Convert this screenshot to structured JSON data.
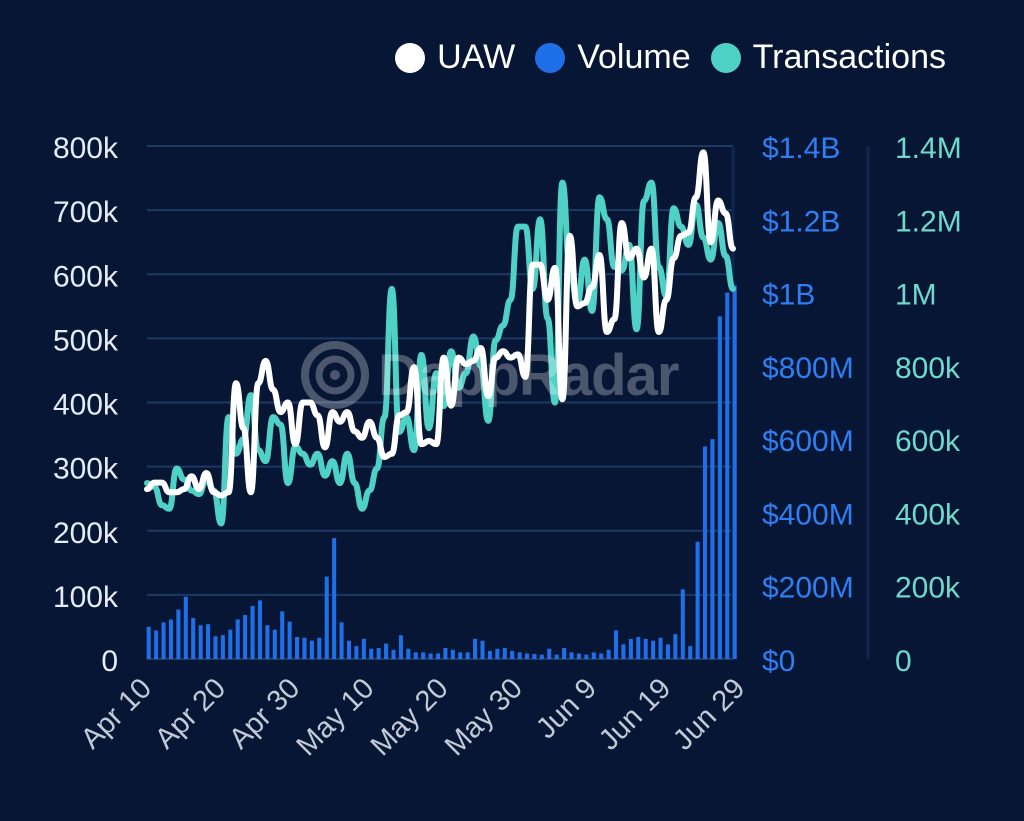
{
  "legend": [
    {
      "label": "UAW",
      "color": "#ffffff"
    },
    {
      "label": "Volume",
      "color": "#1f6fe8"
    },
    {
      "label": "Transactions",
      "color": "#4fd1c5"
    }
  ],
  "watermark": "DappRadar",
  "chart_data": {
    "type": "line",
    "xlabel": "",
    "x_tick_labels": [
      "Apr 10",
      "Apr 20",
      "Apr 30",
      "May 10",
      "May 20",
      "May 30",
      "Jun 9",
      "Jun 19",
      "Jun 29"
    ],
    "y_left": {
      "label": "",
      "ticks": [
        "0",
        "100k",
        "200k",
        "300k",
        "400k",
        "500k",
        "600k",
        "700k",
        "800k"
      ],
      "ylim": [
        0,
        800000
      ]
    },
    "y_volume": {
      "label": "",
      "ticks": [
        "$0",
        "$200M",
        "$400M",
        "$600M",
        "$800M",
        "$1B",
        "$1.2B",
        "$1.4B"
      ],
      "ylim": [
        0,
        1400000000
      ]
    },
    "y_transactions": {
      "label": "",
      "ticks": [
        "0",
        "200k",
        "400k",
        "600k",
        "800k",
        "1M",
        "1.2M",
        "1.4M"
      ],
      "ylim": [
        0,
        1400000
      ]
    },
    "grid": true,
    "legend_position": "top-right",
    "series": [
      {
        "name": "UAW",
        "axis": "left",
        "color": "#ffffff",
        "values": [
          265000,
          275000,
          275000,
          260000,
          260000,
          265000,
          285000,
          265000,
          290000,
          260000,
          255000,
          260000,
          430000,
          360000,
          260000,
          430000,
          465000,
          420000,
          385000,
          400000,
          335000,
          400000,
          400000,
          380000,
          330000,
          385000,
          370000,
          385000,
          355000,
          345000,
          370000,
          345000,
          315000,
          320000,
          380000,
          385000,
          455000,
          335000,
          340000,
          335000,
          470000,
          395000,
          470000,
          460000,
          465000,
          485000,
          410000,
          470000,
          480000,
          470000,
          475000,
          440000,
          615000,
          615000,
          560000,
          610000,
          405000,
          660000,
          550000,
          555000,
          580000,
          630000,
          510000,
          530000,
          680000,
          625000,
          640000,
          595000,
          640000,
          510000,
          560000,
          625000,
          660000,
          665000,
          720000,
          790000,
          650000,
          715000,
          695000,
          640000
        ]
      },
      {
        "name": "Transactions",
        "axis": "right",
        "color": "#4fd1c5",
        "values": [
          480000,
          470000,
          420000,
          410000,
          520000,
          490000,
          460000,
          450000,
          490000,
          460000,
          370000,
          660000,
          560000,
          600000,
          720000,
          570000,
          540000,
          660000,
          640000,
          480000,
          580000,
          560000,
          530000,
          560000,
          500000,
          540000,
          480000,
          560000,
          480000,
          410000,
          460000,
          520000,
          660000,
          1010000,
          620000,
          660000,
          570000,
          830000,
          630000,
          780000,
          690000,
          840000,
          740000,
          780000,
          880000,
          800000,
          650000,
          870000,
          910000,
          980000,
          1180000,
          1180000,
          1010000,
          1200000,
          930000,
          700000,
          1300000,
          1070000,
          970000,
          1090000,
          950000,
          1260000,
          1200000,
          1070000,
          1060000,
          1130000,
          900000,
          1250000,
          1300000,
          1070000,
          990000,
          1230000,
          1180000,
          1130000,
          1240000,
          1150000,
          1090000,
          1190000,
          1100000,
          1010000
        ]
      },
      {
        "name": "Volume",
        "axis": "volume",
        "type": "bar",
        "color": "#1f6fe8",
        "values": [
          88000000,
          78000000,
          100000000,
          108000000,
          135000000,
          170000000,
          112000000,
          92000000,
          95000000,
          62000000,
          65000000,
          80000000,
          108000000,
          120000000,
          145000000,
          160000000,
          92000000,
          80000000,
          130000000,
          102000000,
          60000000,
          58000000,
          50000000,
          58000000,
          225000000,
          330000000,
          100000000,
          50000000,
          35000000,
          55000000,
          28000000,
          30000000,
          42000000,
          25000000,
          65000000,
          28000000,
          18000000,
          18000000,
          15000000,
          15000000,
          30000000,
          25000000,
          18000000,
          18000000,
          55000000,
          50000000,
          22000000,
          28000000,
          30000000,
          22000000,
          18000000,
          15000000,
          14000000,
          12000000,
          28000000,
          12000000,
          30000000,
          18000000,
          15000000,
          12000000,
          18000000,
          15000000,
          25000000,
          78000000,
          40000000,
          55000000,
          60000000,
          55000000,
          50000000,
          58000000,
          40000000,
          68000000,
          190000000,
          35000000,
          320000000,
          580000000,
          600000000,
          935000000,
          1000000000,
          1020000000
        ]
      }
    ]
  }
}
